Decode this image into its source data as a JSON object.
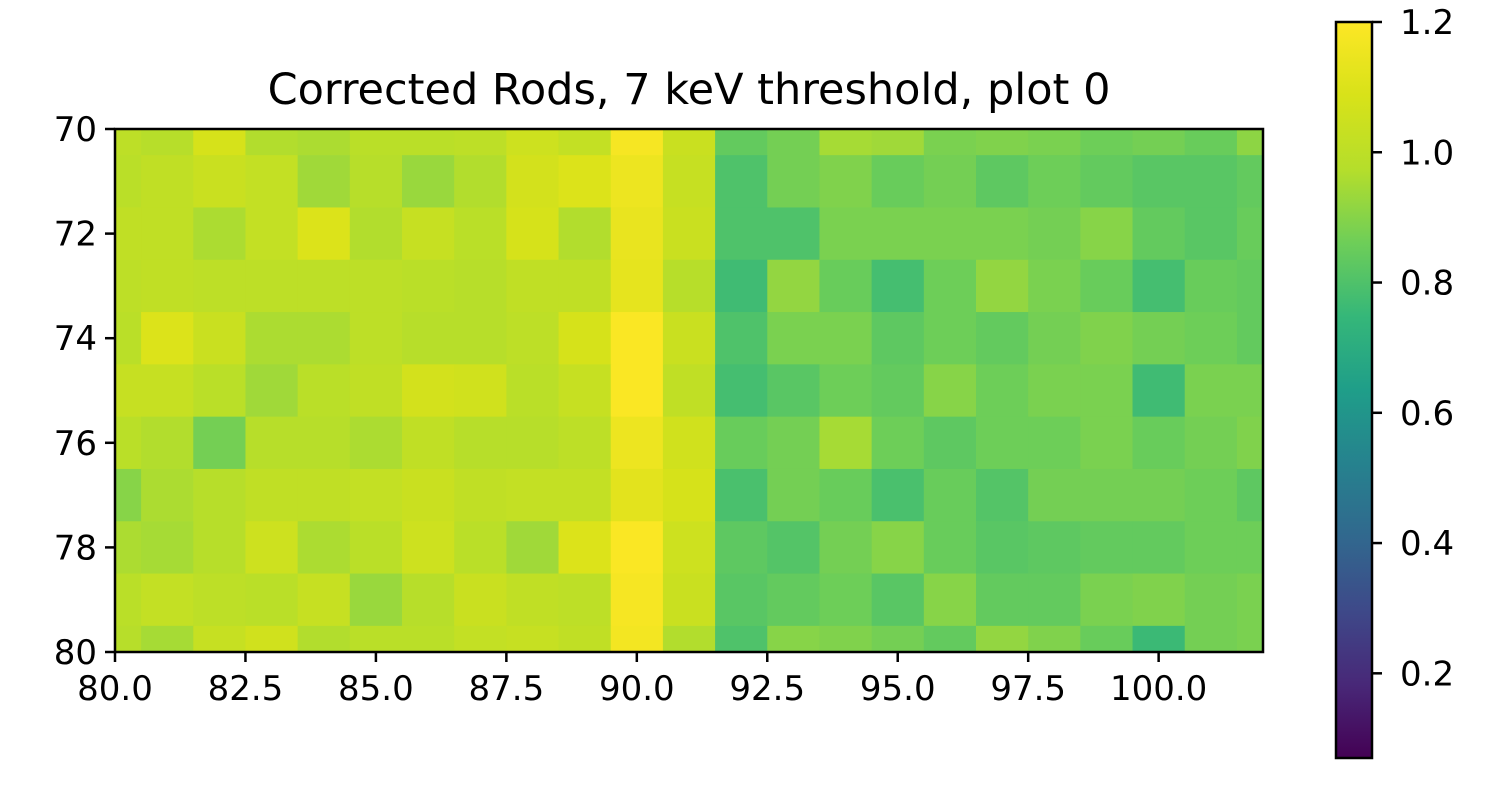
{
  "chart_data": {
    "type": "heatmap",
    "title": "Corrected Rods, 7 keV threshold, plot 0",
    "xlabel": "",
    "ylabel": "",
    "colormap": "viridis",
    "x_extent": [
      80.0,
      102.0
    ],
    "y_extent": [
      70,
      80
    ],
    "y_inverted": true,
    "x_ticks": [
      80.0,
      82.5,
      85.0,
      87.5,
      90.0,
      92.5,
      95.0,
      97.5,
      100.0
    ],
    "x_tick_labels": [
      "80.0",
      "82.5",
      "85.0",
      "87.5",
      "90.0",
      "92.5",
      "95.0",
      "97.5",
      "100.0"
    ],
    "y_ticks": [
      70,
      72,
      74,
      76,
      78,
      80
    ],
    "y_tick_labels": [
      "70",
      "72",
      "74",
      "76",
      "78",
      "80"
    ],
    "colorbar": {
      "min": 0.07,
      "max": 1.2,
      "ticks": [
        0.2,
        0.4,
        0.6,
        0.8,
        1.0,
        1.2
      ],
      "tick_labels": [
        "0.2",
        "0.4",
        "0.6",
        "0.8",
        "1.0",
        "1.2"
      ]
    },
    "values": [
      [
        1.0,
        0.98,
        1.08,
        0.97,
        0.96,
        0.99,
        0.99,
        1.0,
        1.05,
        1.02,
        1.18,
        1.04,
        0.84,
        0.87,
        0.95,
        0.94,
        0.88,
        0.89,
        0.88,
        0.86,
        0.87,
        0.85,
        0.91,
        0.79
      ],
      [
        0.99,
        1.01,
        1.04,
        1.02,
        0.94,
        0.98,
        0.93,
        0.97,
        1.07,
        1.1,
        1.15,
        1.03,
        0.8,
        0.87,
        0.89,
        0.85,
        0.87,
        0.83,
        0.86,
        0.84,
        0.82,
        0.82,
        0.84,
        0.79
      ],
      [
        1.01,
        1.01,
        0.96,
        1.02,
        1.1,
        0.97,
        1.03,
        0.99,
        1.08,
        0.97,
        1.14,
        1.04,
        0.8,
        0.8,
        0.88,
        0.88,
        0.88,
        0.88,
        0.87,
        0.9,
        0.84,
        0.82,
        0.85,
        0.81
      ],
      [
        1.0,
        1.01,
        1.0,
        1.0,
        1.0,
        1.0,
        0.99,
        0.98,
        1.01,
        1.01,
        1.13,
        0.98,
        0.77,
        0.92,
        0.85,
        0.78,
        0.86,
        0.92,
        0.88,
        0.85,
        0.78,
        0.85,
        0.84,
        0.82
      ],
      [
        0.99,
        1.1,
        1.04,
        0.96,
        0.96,
        1.0,
        0.98,
        0.98,
        1.0,
        1.08,
        1.19,
        1.04,
        0.8,
        0.88,
        0.88,
        0.83,
        0.86,
        0.84,
        0.87,
        0.89,
        0.87,
        0.86,
        0.84,
        0.8
      ],
      [
        1.03,
        1.03,
        0.99,
        0.94,
        0.99,
        1.01,
        1.07,
        1.06,
        0.99,
        1.03,
        1.19,
        1.01,
        0.78,
        0.82,
        0.86,
        0.84,
        0.9,
        0.86,
        0.88,
        0.88,
        0.77,
        0.88,
        0.88,
        0.83
      ],
      [
        0.99,
        0.97,
        0.87,
        0.98,
        0.98,
        0.96,
        1.01,
        0.98,
        0.98,
        1.0,
        1.15,
        1.06,
        0.85,
        0.87,
        0.95,
        0.86,
        0.83,
        0.86,
        0.86,
        0.88,
        0.85,
        0.87,
        0.89,
        0.93
      ],
      [
        0.9,
        0.96,
        0.98,
        1.01,
        1.01,
        1.02,
        1.04,
        1.01,
        1.02,
        1.02,
        1.12,
        1.08,
        0.79,
        0.87,
        0.85,
        0.79,
        0.85,
        0.81,
        0.87,
        0.87,
        0.87,
        0.86,
        0.83,
        0.82
      ],
      [
        0.96,
        0.95,
        0.98,
        1.05,
        0.96,
        0.99,
        1.05,
        0.99,
        0.94,
        1.1,
        1.19,
        1.05,
        0.83,
        0.81,
        0.87,
        0.9,
        0.85,
        0.82,
        0.83,
        0.84,
        0.84,
        0.86,
        0.86,
        0.85
      ],
      [
        0.99,
        1.02,
        1.0,
        0.99,
        1.03,
        0.93,
        0.98,
        1.04,
        1.01,
        1.0,
        1.18,
        1.04,
        0.82,
        0.84,
        0.86,
        0.82,
        0.9,
        0.84,
        0.84,
        0.88,
        0.89,
        0.87,
        0.88,
        0.83
      ],
      [
        0.98,
        0.95,
        1.03,
        1.06,
        0.97,
        0.99,
        0.99,
        1.02,
        1.03,
        1.01,
        1.17,
        0.97,
        0.8,
        0.9,
        0.89,
        0.87,
        0.84,
        0.92,
        0.89,
        0.85,
        0.76,
        0.87,
        0.88,
        0.81
      ]
    ]
  }
}
